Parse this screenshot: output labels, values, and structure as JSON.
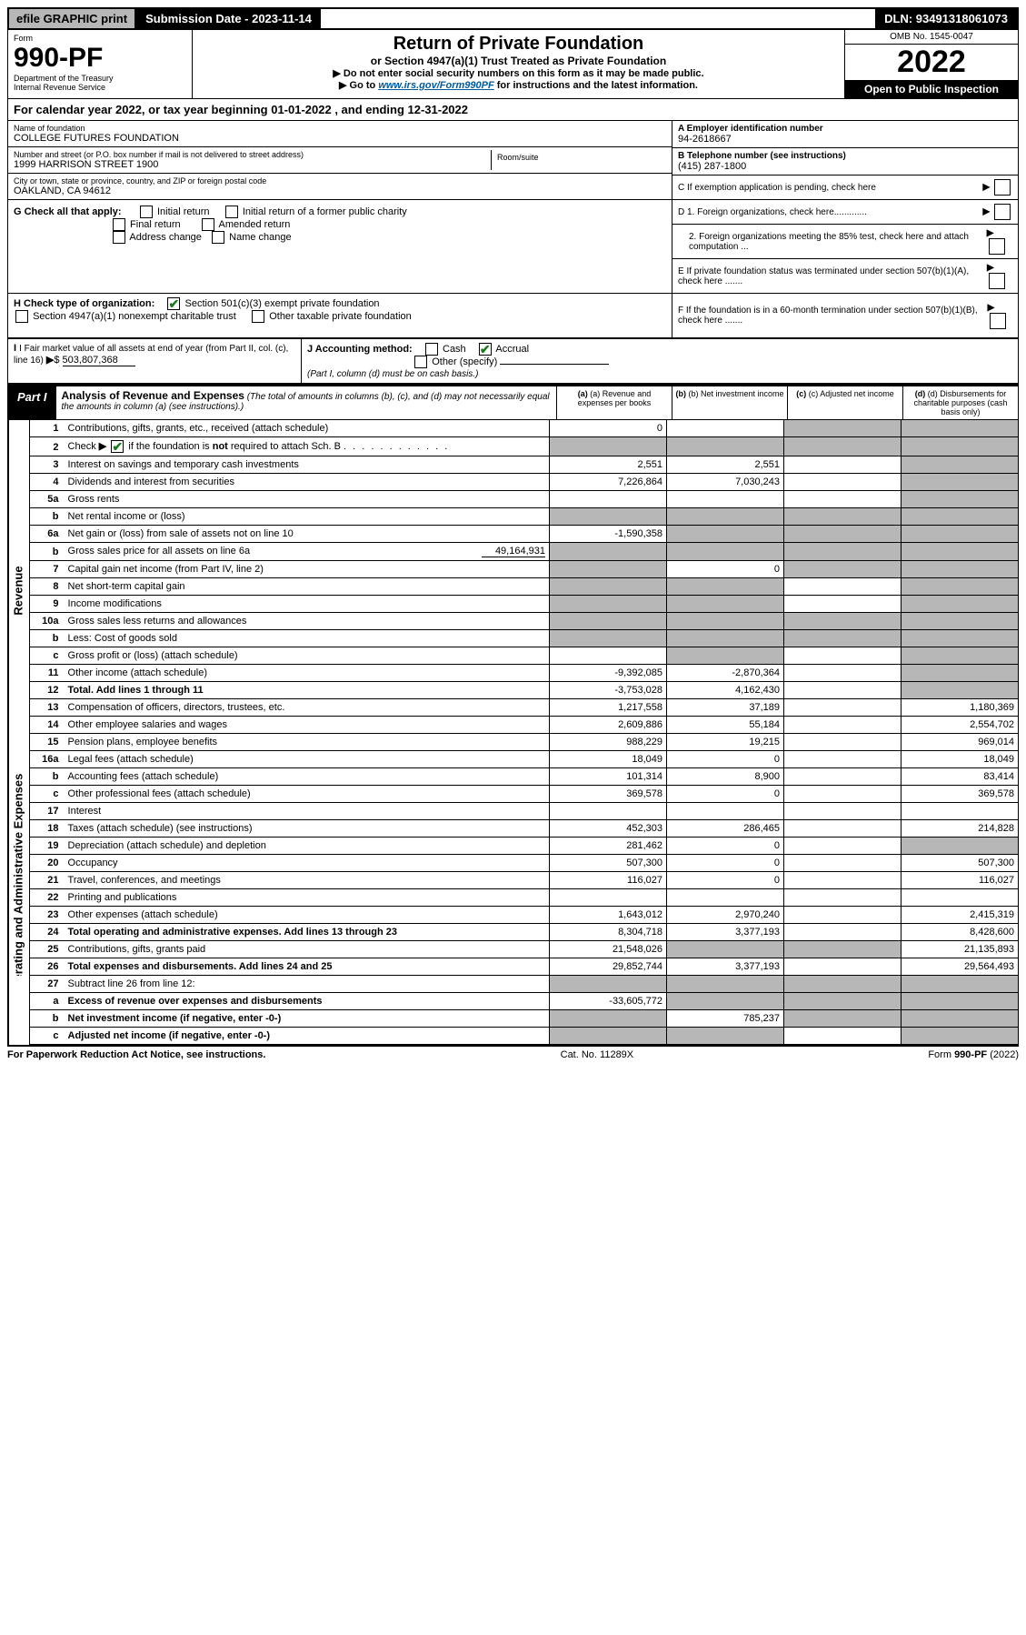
{
  "topbar": {
    "efile": "efile GRAPHIC print",
    "submission": "Submission Date - 2023-11-14",
    "dln": "DLN: 93491318061073"
  },
  "header": {
    "form_label": "Form",
    "form_number": "990-PF",
    "dept": "Department of the Treasury",
    "irs": "Internal Revenue Service",
    "title": "Return of Private Foundation",
    "subtitle": "or Section 4947(a)(1) Trust Treated as Private Foundation",
    "note1": "▶ Do not enter social security numbers on this form as it may be made public.",
    "note2_pre": "▶ Go to ",
    "note2_link": "www.irs.gov/Form990PF",
    "note2_post": " for instructions and the latest information.",
    "omb": "OMB No. 1545-0047",
    "year": "2022",
    "open": "Open to Public Inspection"
  },
  "calyear": "For calendar year 2022, or tax year beginning 01-01-2022                         , and ending 12-31-2022",
  "entity": {
    "name_label": "Name of foundation",
    "name": "COLLEGE FUTURES FOUNDATION",
    "addr_label": "Number and street (or P.O. box number if mail is not delivered to street address)",
    "addr": "1999 HARRISON STREET 1900",
    "room_label": "Room/suite",
    "city_label": "City or town, state or province, country, and ZIP or foreign postal code",
    "city": "OAKLAND, CA  94612",
    "a_label": "A Employer identification number",
    "a_val": "94-2618667",
    "b_label": "B Telephone number (see instructions)",
    "b_val": "(415) 287-1800",
    "c_label": "C If exemption application is pending, check here",
    "d1": "D 1. Foreign organizations, check here.............",
    "d2": "2. Foreign organizations meeting the 85% test, check here and attach computation ...",
    "e": "E  If private foundation status was terminated under section 507(b)(1)(A), check here .......",
    "f": "F  If the foundation is in a 60-month termination under section 507(b)(1)(B), check here .......",
    "g_label": "G Check all that apply:",
    "g_opts": [
      "Initial return",
      "Initial return of a former public charity",
      "Final return",
      "Amended return",
      "Address change",
      "Name change"
    ],
    "h_label": "H Check type of organization:",
    "h_opt1": "Section 501(c)(3) exempt private foundation",
    "h_opt2": "Section 4947(a)(1) nonexempt charitable trust",
    "h_opt3": "Other taxable private foundation",
    "i_label": "I Fair market value of all assets at end of year (from Part II, col. (c), line 16)",
    "i_val": "503,807,368",
    "j_label": "J Accounting method:",
    "j_cash": "Cash",
    "j_accrual": "Accrual",
    "j_other": "Other (specify)",
    "j_note": "(Part I, column (d) must be on cash basis.)"
  },
  "part1": {
    "label": "Part I",
    "title": "Analysis of Revenue and Expenses",
    "note": "(The total of amounts in columns (b), (c), and (d) may not necessarily equal the amounts in column (a) (see instructions).)",
    "col_a": "(a)  Revenue and expenses per books",
    "col_b": "(b)  Net investment income",
    "col_c": "(c)  Adjusted net income",
    "col_d": "(d)  Disbursements for charitable purposes (cash basis only)"
  },
  "sides": {
    "revenue": "Revenue",
    "expenses": "Operating and Administrative Expenses"
  },
  "lines": [
    {
      "n": "1",
      "desc": "Contributions, gifts, grants, etc., received (attach schedule)",
      "a": "0",
      "b": "",
      "c": "",
      "d": "",
      "shade_c": true,
      "shade_d": true
    },
    {
      "n": "2",
      "desc": "Check ▶ ☑ if the foundation is not required to attach Sch. B",
      "a": "",
      "b": "",
      "c": "",
      "d": "",
      "shade_a": true,
      "shade_b": true,
      "shade_c": true,
      "shade_d": true,
      "noborder": false,
      "checked": true
    },
    {
      "n": "3",
      "desc": "Interest on savings and temporary cash investments",
      "a": "2,551",
      "b": "2,551",
      "c": "",
      "d": "",
      "shade_d": true
    },
    {
      "n": "4",
      "desc": "Dividends and interest from securities",
      "a": "7,226,864",
      "b": "7,030,243",
      "c": "",
      "d": "",
      "shade_d": true
    },
    {
      "n": "5a",
      "desc": "Gross rents",
      "a": "",
      "b": "",
      "c": "",
      "d": "",
      "shade_d": true
    },
    {
      "n": "b",
      "desc": "Net rental income or (loss)",
      "a": "",
      "b": "",
      "c": "",
      "d": "",
      "shade_a": true,
      "shade_b": true,
      "shade_c": true,
      "shade_d": true,
      "inset": true
    },
    {
      "n": "6a",
      "desc": "Net gain or (loss) from sale of assets not on line 10",
      "a": "-1,590,358",
      "b": "",
      "c": "",
      "d": "",
      "shade_b": true,
      "shade_c": true,
      "shade_d": true
    },
    {
      "n": "b",
      "desc": "Gross sales price for all assets on line 6a",
      "a": "",
      "b": "",
      "c": "",
      "d": "",
      "shade_a": true,
      "shade_b": true,
      "shade_c": true,
      "shade_d": true,
      "inset": true,
      "inlineval": "49,164,931"
    },
    {
      "n": "7",
      "desc": "Capital gain net income (from Part IV, line 2)",
      "a": "",
      "b": "0",
      "c": "",
      "d": "",
      "shade_a": true,
      "shade_c": true,
      "shade_d": true
    },
    {
      "n": "8",
      "desc": "Net short-term capital gain",
      "a": "",
      "b": "",
      "c": "",
      "d": "",
      "shade_a": true,
      "shade_b": true,
      "shade_d": true
    },
    {
      "n": "9",
      "desc": "Income modifications",
      "a": "",
      "b": "",
      "c": "",
      "d": "",
      "shade_a": true,
      "shade_b": true,
      "shade_d": true
    },
    {
      "n": "10a",
      "desc": "Gross sales less returns and allowances",
      "a": "",
      "b": "",
      "c": "",
      "d": "",
      "shade_a": true,
      "shade_b": true,
      "shade_c": true,
      "shade_d": true,
      "inset": true
    },
    {
      "n": "b",
      "desc": "Less: Cost of goods sold",
      "a": "",
      "b": "",
      "c": "",
      "d": "",
      "shade_a": true,
      "shade_b": true,
      "shade_c": true,
      "shade_d": true,
      "inset": true
    },
    {
      "n": "c",
      "desc": "Gross profit or (loss) (attach schedule)",
      "a": "",
      "b": "",
      "c": "",
      "d": "",
      "shade_b": true,
      "shade_d": true
    },
    {
      "n": "11",
      "desc": "Other income (attach schedule)",
      "a": "-9,392,085",
      "b": "-2,870,364",
      "c": "",
      "d": "",
      "shade_d": true
    },
    {
      "n": "12",
      "desc": "Total. Add lines 1 through 11",
      "a": "-3,753,028",
      "b": "4,162,430",
      "c": "",
      "d": "",
      "shade_d": true,
      "bold": true
    }
  ],
  "exp_lines": [
    {
      "n": "13",
      "desc": "Compensation of officers, directors, trustees, etc.",
      "a": "1,217,558",
      "b": "37,189",
      "c": "",
      "d": "1,180,369"
    },
    {
      "n": "14",
      "desc": "Other employee salaries and wages",
      "a": "2,609,886",
      "b": "55,184",
      "c": "",
      "d": "2,554,702"
    },
    {
      "n": "15",
      "desc": "Pension plans, employee benefits",
      "a": "988,229",
      "b": "19,215",
      "c": "",
      "d": "969,014"
    },
    {
      "n": "16a",
      "desc": "Legal fees (attach schedule)",
      "a": "18,049",
      "b": "0",
      "c": "",
      "d": "18,049"
    },
    {
      "n": "b",
      "desc": "Accounting fees (attach schedule)",
      "a": "101,314",
      "b": "8,900",
      "c": "",
      "d": "83,414"
    },
    {
      "n": "c",
      "desc": "Other professional fees (attach schedule)",
      "a": "369,578",
      "b": "0",
      "c": "",
      "d": "369,578"
    },
    {
      "n": "17",
      "desc": "Interest",
      "a": "",
      "b": "",
      "c": "",
      "d": ""
    },
    {
      "n": "18",
      "desc": "Taxes (attach schedule) (see instructions)",
      "a": "452,303",
      "b": "286,465",
      "c": "",
      "d": "214,828"
    },
    {
      "n": "19",
      "desc": "Depreciation (attach schedule) and depletion",
      "a": "281,462",
      "b": "0",
      "c": "",
      "d": "",
      "shade_d": true
    },
    {
      "n": "20",
      "desc": "Occupancy",
      "a": "507,300",
      "b": "0",
      "c": "",
      "d": "507,300"
    },
    {
      "n": "21",
      "desc": "Travel, conferences, and meetings",
      "a": "116,027",
      "b": "0",
      "c": "",
      "d": "116,027"
    },
    {
      "n": "22",
      "desc": "Printing and publications",
      "a": "",
      "b": "",
      "c": "",
      "d": ""
    },
    {
      "n": "23",
      "desc": "Other expenses (attach schedule)",
      "a": "1,643,012",
      "b": "2,970,240",
      "c": "",
      "d": "2,415,319"
    },
    {
      "n": "24",
      "desc": "Total operating and administrative expenses. Add lines 13 through 23",
      "a": "8,304,718",
      "b": "3,377,193",
      "c": "",
      "d": "8,428,600",
      "bold": true
    },
    {
      "n": "25",
      "desc": "Contributions, gifts, grants paid",
      "a": "21,548,026",
      "b": "",
      "c": "",
      "d": "21,135,893",
      "shade_b": true,
      "shade_c": true
    },
    {
      "n": "26",
      "desc": "Total expenses and disbursements. Add lines 24 and 25",
      "a": "29,852,744",
      "b": "3,377,193",
      "c": "",
      "d": "29,564,493",
      "bold": true
    }
  ],
  "net_lines": [
    {
      "n": "27",
      "desc": "Subtract line 26 from line 12:",
      "a": "",
      "b": "",
      "c": "",
      "d": "",
      "shade_a": true,
      "shade_b": true,
      "shade_c": true,
      "shade_d": true
    },
    {
      "n": "a",
      "desc": "Excess of revenue over expenses and disbursements",
      "a": "-33,605,772",
      "b": "",
      "c": "",
      "d": "",
      "shade_b": true,
      "shade_c": true,
      "shade_d": true,
      "bold": true
    },
    {
      "n": "b",
      "desc": "Net investment income (if negative, enter -0-)",
      "a": "",
      "b": "785,237",
      "c": "",
      "d": "",
      "shade_a": true,
      "shade_c": true,
      "shade_d": true,
      "bold": true
    },
    {
      "n": "c",
      "desc": "Adjusted net income (if negative, enter -0-)",
      "a": "",
      "b": "",
      "c": "",
      "d": "",
      "shade_a": true,
      "shade_b": true,
      "shade_d": true,
      "bold": true
    }
  ],
  "footer": {
    "left": "For Paperwork Reduction Act Notice, see instructions.",
    "mid": "Cat. No. 11289X",
    "right": "Form 990-PF (2022)"
  }
}
